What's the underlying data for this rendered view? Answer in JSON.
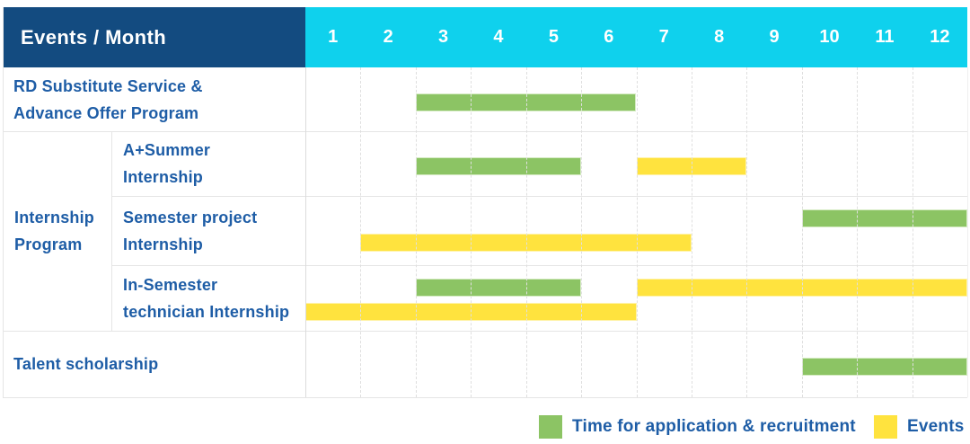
{
  "header": {
    "title": "Events / Month"
  },
  "legend": {
    "items": [
      {
        "kind": "application",
        "label": "Time for application & recruitment"
      },
      {
        "kind": "event",
        "label": "Events"
      }
    ]
  },
  "colors": {
    "header_bg": "#134B80",
    "months_bg": "#0FD1ED",
    "header_text": "#FFFFFF",
    "label_text": "#1E5DA6",
    "application": "#8CC464",
    "application_border": "#D5EBC3",
    "event": "#FFE33E",
    "event_border": "#FFF3A9",
    "row_line": "#E5E5E5",
    "col_line": "#DFDFDF"
  },
  "chart_data": {
    "type": "gantt",
    "x_unit": "month",
    "x_ticks": [
      "1",
      "2",
      "3",
      "4",
      "5",
      "6",
      "7",
      "8",
      "9",
      "10",
      "11",
      "12"
    ],
    "x_range": [
      1,
      12
    ],
    "corner_label": "Events / Month",
    "legend_position": "bottom-right",
    "kinds": {
      "application": "Time for application & recruitment",
      "event": "Events"
    },
    "rows": [
      {
        "label": "RD Substitute Service & Advance Offer Program",
        "label_lines": [
          "RD Substitute Service &",
          "Advance Offer Program"
        ],
        "group": null,
        "lanes": 1,
        "bars": [
          {
            "kind": "application",
            "start_month": 3,
            "end_month": 6,
            "lane": 0
          }
        ]
      },
      {
        "label": "A+Summer Internship",
        "label_lines": [
          "A+Summer",
          "Internship"
        ],
        "group": "Internship Program",
        "lanes": 1,
        "bars": [
          {
            "kind": "application",
            "start_month": 3,
            "end_month": 5,
            "lane": 0
          },
          {
            "kind": "event",
            "start_month": 7,
            "end_month": 8,
            "lane": 0
          }
        ]
      },
      {
        "label": "Semester project Internship",
        "label_lines": [
          "Semester project",
          "Internship"
        ],
        "group": "Internship Program",
        "lanes": 2,
        "bars": [
          {
            "kind": "application",
            "start_month": 10,
            "end_month": 12,
            "lane": 0
          },
          {
            "kind": "event",
            "start_month": 2,
            "end_month": 7,
            "lane": 1
          }
        ]
      },
      {
        "label": "In-Semester technician Internship",
        "label_lines": [
          "In-Semester",
          "technician Internship"
        ],
        "group": "Internship Program",
        "lanes": 2,
        "bars": [
          {
            "kind": "application",
            "start_month": 3,
            "end_month": 5,
            "lane": 0
          },
          {
            "kind": "event",
            "start_month": 7,
            "end_month": 12,
            "lane": 0
          },
          {
            "kind": "event",
            "start_month": 1,
            "end_month": 6,
            "lane": 1
          }
        ]
      },
      {
        "label": "Talent scholarship",
        "label_lines": [
          "Talent scholarship"
        ],
        "group": null,
        "lanes": 1,
        "bars": [
          {
            "kind": "application",
            "start_month": 10,
            "end_month": 12,
            "lane": 0
          }
        ]
      }
    ],
    "groups": [
      {
        "label": "Internship Program",
        "label_lines": [
          "Internship",
          "Program"
        ],
        "row_start": 1,
        "row_end": 3
      }
    ]
  }
}
